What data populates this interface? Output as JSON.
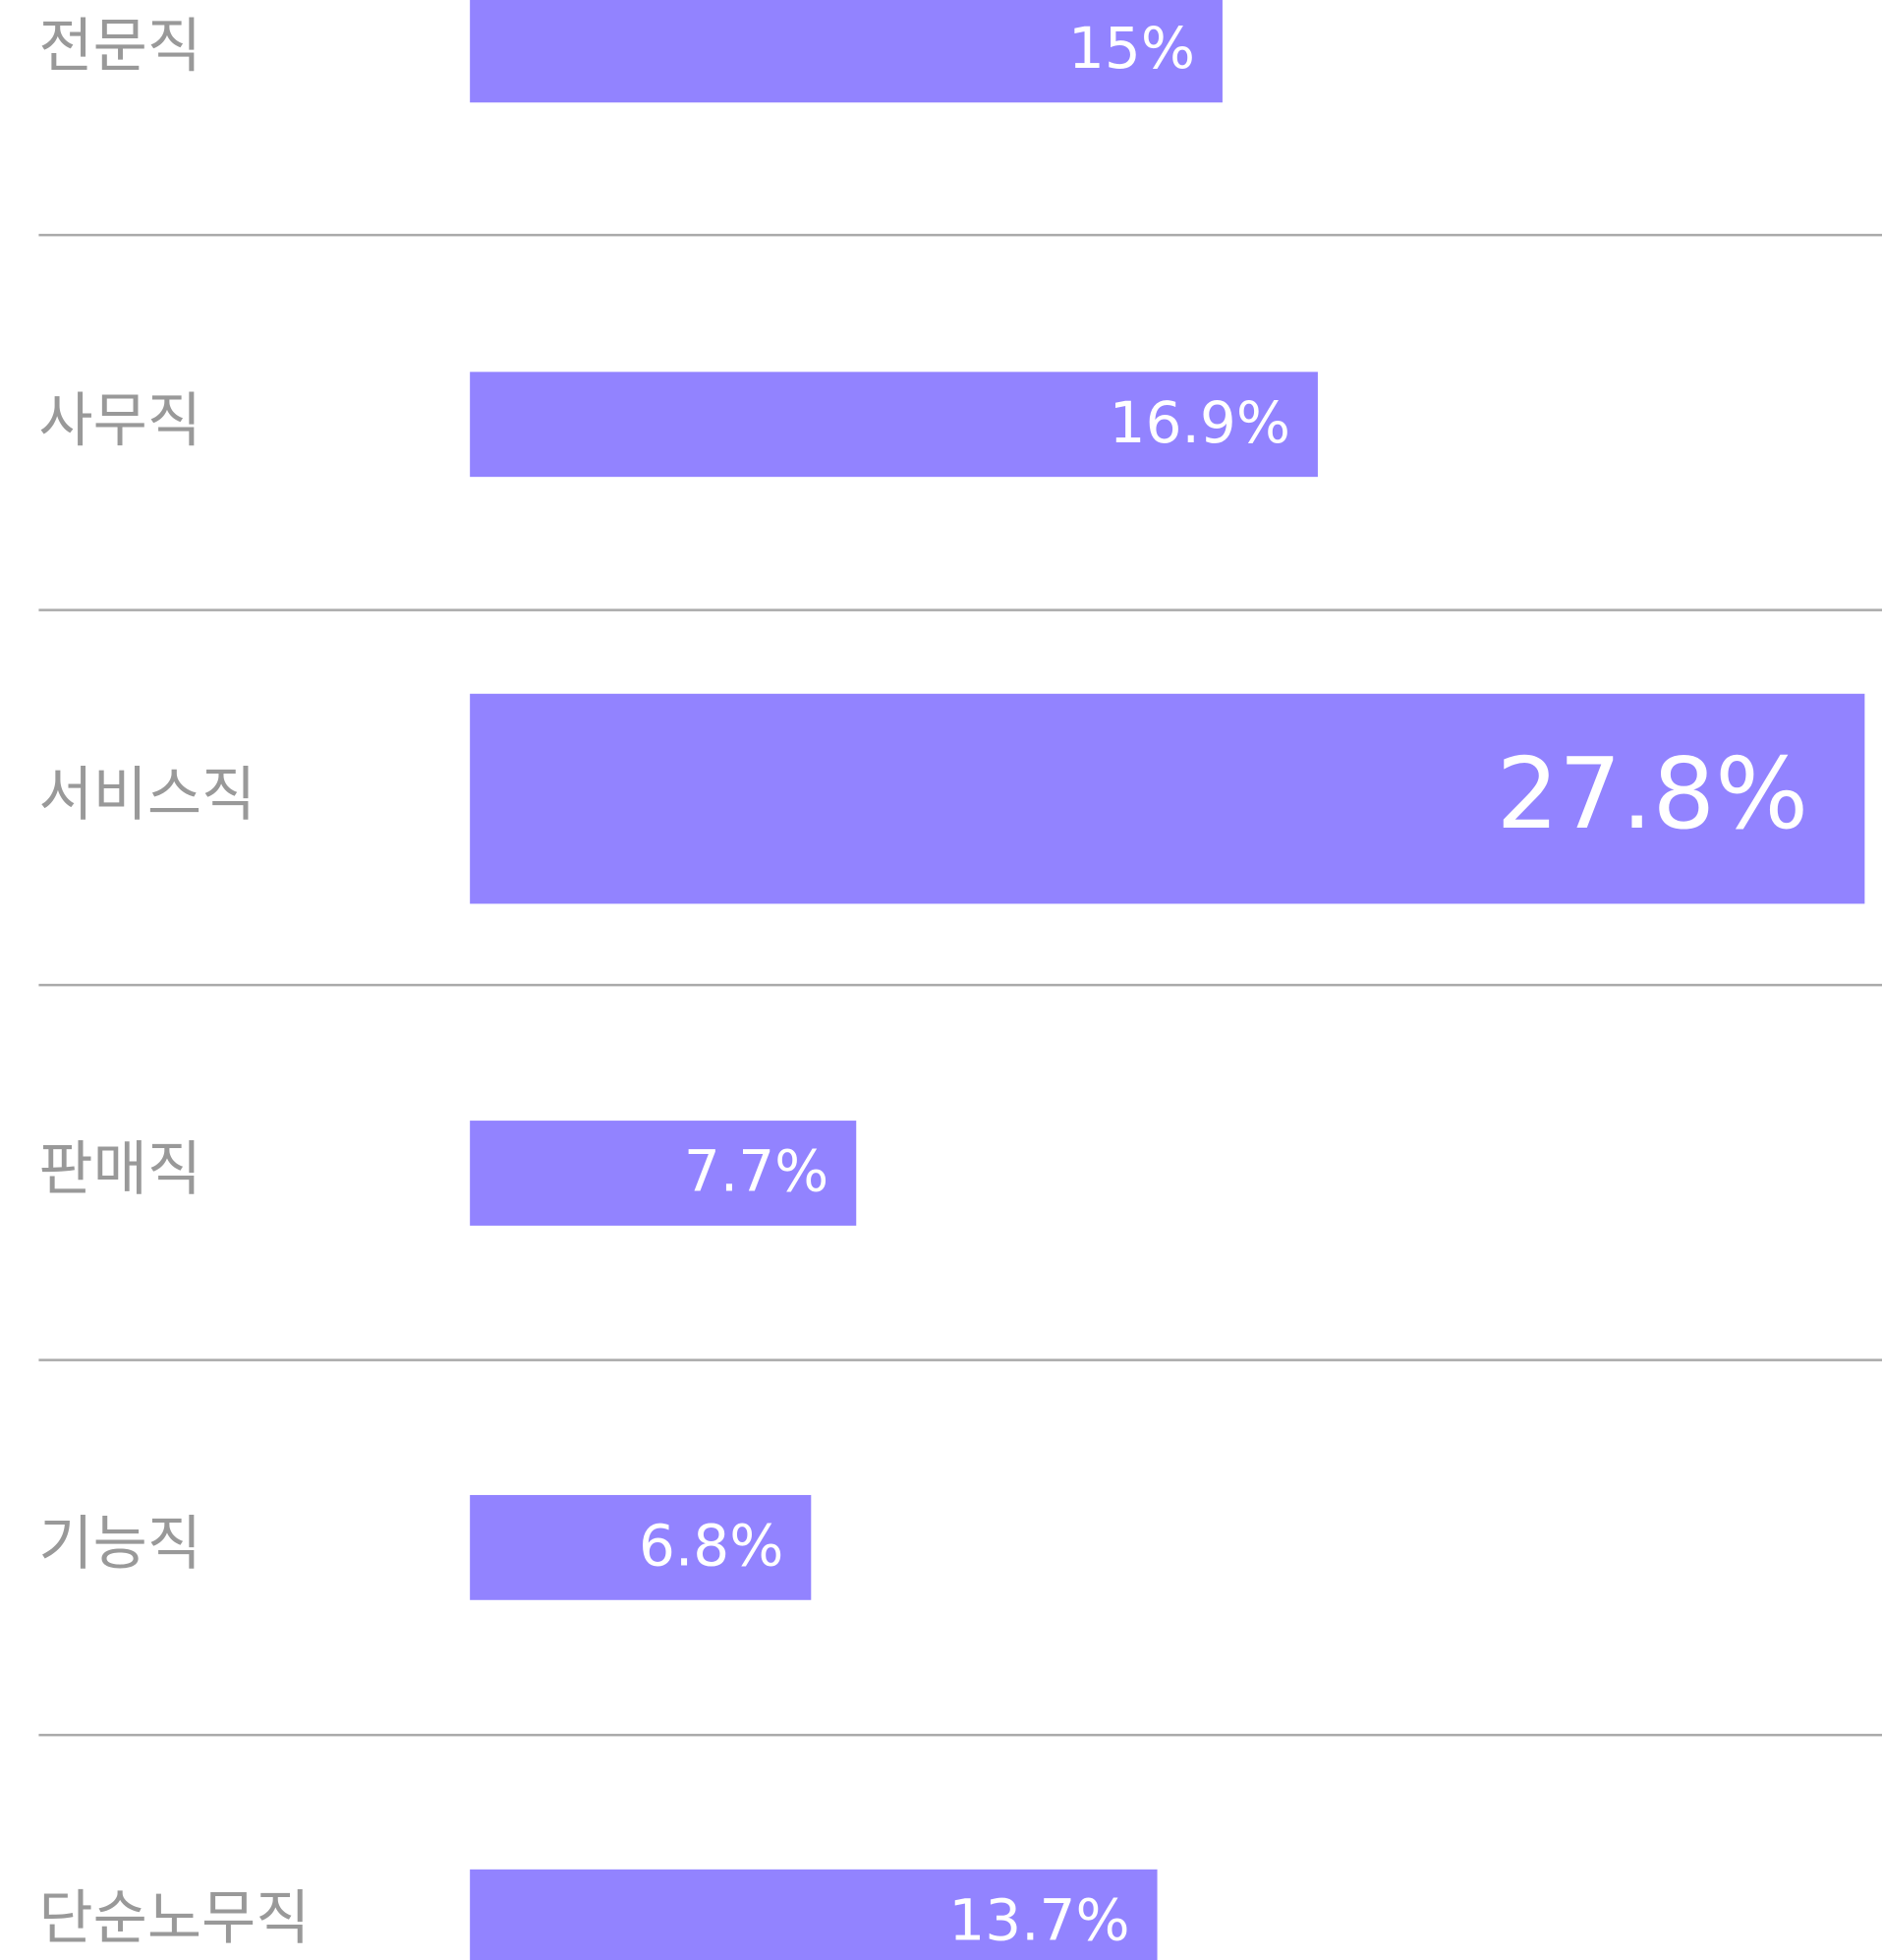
{
  "chart_data": {
    "type": "bar",
    "orientation": "horizontal",
    "categories": [
      "전문직",
      "사무직",
      "서비스직",
      "판매직",
      "기능직",
      "단순노무직"
    ],
    "values": [
      15,
      16.9,
      27.8,
      7.7,
      6.8,
      13.7
    ],
    "value_labels": [
      "15%",
      "16.9%",
      "27.8%",
      "7.7%",
      "6.8%",
      "13.7%"
    ],
    "color": "#9283ff"
  }
}
